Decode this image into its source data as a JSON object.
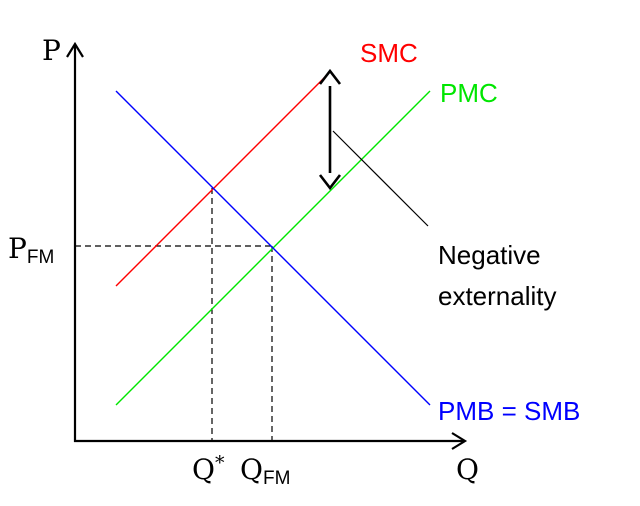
{
  "diagram": {
    "axes": {
      "y_label": "P",
      "x_label": "Q"
    },
    "curves": {
      "smc": {
        "label": "SMC",
        "color": "#ff0000"
      },
      "pmc": {
        "label": "PMC",
        "color": "#00e600"
      },
      "demand": {
        "label": "PMB = SMB",
        "color": "#0000ff"
      }
    },
    "levels": {
      "p_fm": {
        "base": "P",
        "sub": "FM"
      },
      "q_star": {
        "base": "Q",
        "sup": "*"
      },
      "q_fm": {
        "base": "Q",
        "sub": "FM"
      }
    },
    "annotation": {
      "line1": "Negative",
      "line2": "externality"
    }
  }
}
